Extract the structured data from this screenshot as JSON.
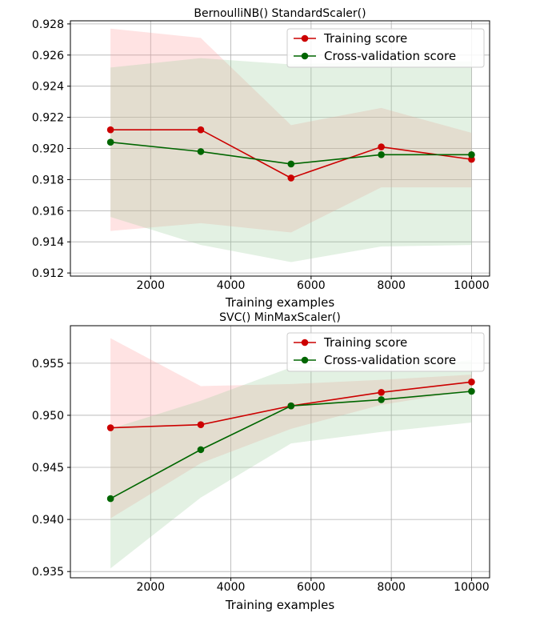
{
  "chart_data": [
    {
      "type": "line",
      "title": "BernoulliNB() StandardScaler()",
      "xlabel": "Training examples",
      "ylabel": "",
      "x": [
        1000,
        3250,
        5500,
        7750,
        10000
      ],
      "xlim": [
        0,
        10450
      ],
      "ylim": [
        0.9118,
        0.9282
      ],
      "xticks": [
        2000,
        4000,
        6000,
        8000,
        10000
      ],
      "yticks": [
        0.912,
        0.914,
        0.916,
        0.918,
        0.92,
        0.922,
        0.924,
        0.926,
        0.928
      ],
      "ytick_labels": [
        "0.912",
        "0.914",
        "0.916",
        "0.918",
        "0.920",
        "0.922",
        "0.924",
        "0.926",
        "0.928"
      ],
      "grid": true,
      "legend_position": "top-right",
      "series": [
        {
          "name": "Training score",
          "color": "#cc0000",
          "band_color": "#ff9999",
          "values": [
            0.9212,
            0.9212,
            0.9181,
            0.9201,
            0.9193
          ],
          "upper": [
            0.9277,
            0.9271,
            0.9215,
            0.9226,
            0.921
          ],
          "lower": [
            0.9147,
            0.9152,
            0.9146,
            0.9175,
            0.9175
          ]
        },
        {
          "name": "Cross-validation score",
          "color": "#006600",
          "band_color": "#99cc99",
          "values": [
            0.9204,
            0.9198,
            0.919,
            0.9196,
            0.9196
          ],
          "upper": [
            0.9252,
            0.9258,
            0.9254,
            0.9256,
            0.9256
          ],
          "lower": [
            0.9156,
            0.9138,
            0.9127,
            0.9137,
            0.9138
          ]
        }
      ]
    },
    {
      "type": "line",
      "title": "SVC() MinMaxScaler()",
      "xlabel": "Training examples",
      "ylabel": "",
      "x": [
        1000,
        3250,
        5500,
        7750,
        10000
      ],
      "xlim": [
        0,
        10450
      ],
      "ylim": [
        0.9344,
        0.9586
      ],
      "xticks": [
        2000,
        4000,
        6000,
        8000,
        10000
      ],
      "yticks": [
        0.935,
        0.94,
        0.945,
        0.95,
        0.955
      ],
      "ytick_labels": [
        "0.935",
        "0.940",
        "0.945",
        "0.950",
        "0.955"
      ],
      "grid": true,
      "legend_position": "top-right",
      "series": [
        {
          "name": "Training score",
          "color": "#cc0000",
          "band_color": "#ff9999",
          "values": [
            0.9488,
            0.9491,
            0.9509,
            0.9522,
            0.9532
          ],
          "upper": [
            0.9574,
            0.9528,
            0.953,
            0.9534,
            0.9539
          ],
          "lower": [
            0.9401,
            0.9454,
            0.9487,
            0.951,
            0.9524
          ]
        },
        {
          "name": "Cross-validation score",
          "color": "#006600",
          "band_color": "#99cc99",
          "values": [
            0.942,
            0.9467,
            0.9509,
            0.9515,
            0.9523
          ],
          "upper": [
            0.9487,
            0.9514,
            0.9546,
            0.9546,
            0.9553
          ],
          "lower": [
            0.9353,
            0.9421,
            0.9473,
            0.9484,
            0.9493
          ]
        }
      ]
    }
  ]
}
